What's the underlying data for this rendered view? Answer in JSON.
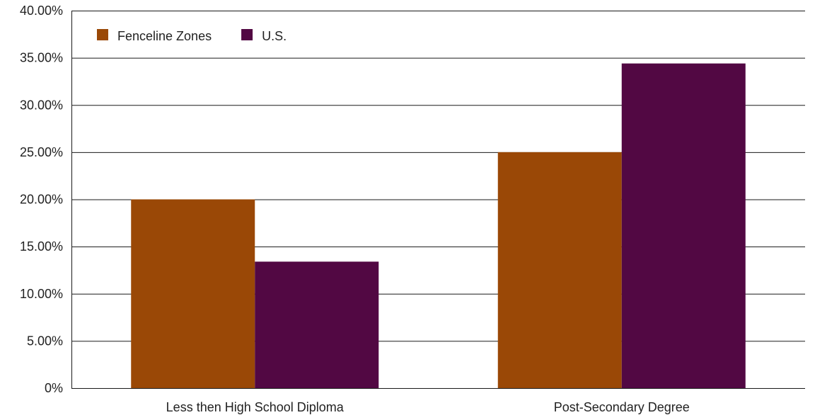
{
  "chart_data": {
    "type": "bar",
    "title": "",
    "xlabel": "",
    "ylabel": "",
    "categories": [
      "Less then High School Diploma",
      "Post-Secondary Degree"
    ],
    "series": [
      {
        "name": "Fenceline Zones",
        "values": [
          20.0,
          25.0
        ],
        "color": "#9a4806"
      },
      {
        "name": "U.S.",
        "values": [
          13.4,
          34.4
        ],
        "color": "#520843"
      }
    ],
    "ylim": [
      0,
      40
    ],
    "ytick_values": [
      0,
      5,
      10,
      15,
      20,
      25,
      30,
      35,
      40
    ],
    "ytick_labels": [
      "0%",
      "5.00%",
      "10.00%",
      "15.00%",
      "20.00%",
      "25.00%",
      "30.00%",
      "35.00%",
      "40.00%"
    ],
    "grid": true,
    "legend_position": "top-left"
  }
}
